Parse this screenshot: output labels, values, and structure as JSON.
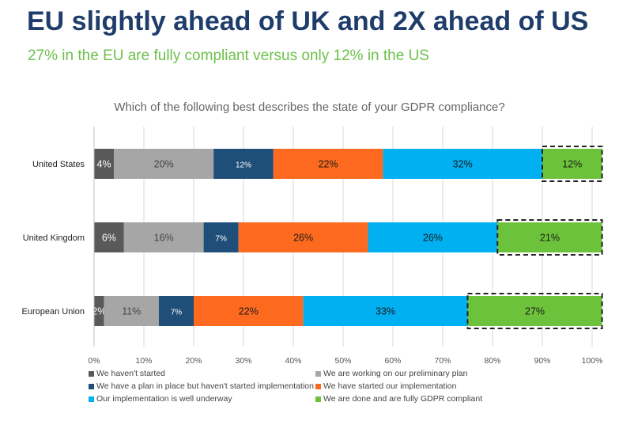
{
  "headline": "EU slightly ahead of UK and 2X ahead of US",
  "subheadline": "27% in the EU are fully compliant versus only 12% in the US",
  "chart_data": {
    "type": "bar",
    "orientation": "horizontal",
    "stacked": true,
    "title": "Which of the following best describes the state of your GDPR compliance?",
    "categories": [
      "United States",
      "United Kingdom",
      "European Union"
    ],
    "series": [
      {
        "name": "We haven't started",
        "color": "#595959",
        "values": [
          4,
          6,
          2
        ],
        "labels": [
          "4%",
          "6%",
          "2%"
        ]
      },
      {
        "name": "We are working on our preliminary plan",
        "color": "#a6a6a6",
        "values": [
          20,
          16,
          11
        ],
        "labels": [
          "20%",
          "16%",
          "11%"
        ]
      },
      {
        "name": "We have a plan in place but haven't started implementation",
        "color": "#1f4e79",
        "values": [
          12,
          7,
          7
        ],
        "labels": [
          "12%",
          "7%",
          "7%"
        ]
      },
      {
        "name": "We have started our implementation",
        "color": "#fd6a1f",
        "values": [
          22,
          26,
          22
        ],
        "labels": [
          "22%",
          "26%",
          "22%"
        ]
      },
      {
        "name": "Our implementation is well underway",
        "color": "#00b0f0",
        "values": [
          32,
          26,
          33
        ],
        "labels": [
          "32%",
          "26%",
          "33%"
        ]
      },
      {
        "name": "We are done and are fully GDPR compliant",
        "color": "#6cc33b",
        "values": [
          12,
          21,
          27
        ],
        "labels": [
          "12%",
          "21%",
          "27%"
        ]
      }
    ],
    "xlim": [
      0,
      100
    ],
    "xticks": [
      "0%",
      "10%",
      "20%",
      "30%",
      "40%",
      "50%",
      "60%",
      "70%",
      "80%",
      "90%",
      "100%"
    ],
    "highlighted_series": "We are done and are fully GDPR compliant",
    "grid": true,
    "legend_position": "bottom"
  }
}
